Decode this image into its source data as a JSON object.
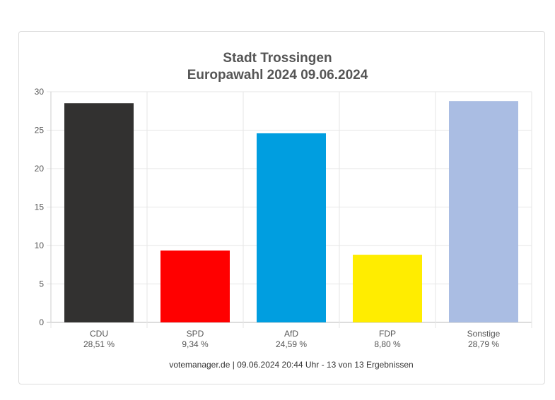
{
  "chart_data": {
    "type": "bar",
    "title_line1": "Stadt Trossingen",
    "title_line2": "Europawahl 2024 09.06.2024",
    "categories": [
      "CDU",
      "SPD",
      "AfD",
      "FDP",
      "Sonstige"
    ],
    "value_labels": [
      "28,51 %",
      "9,34 %",
      "24,59 %",
      "8,80 %",
      "28,79 %"
    ],
    "values": [
      28.51,
      9.34,
      24.59,
      8.8,
      28.79
    ],
    "colors": [
      "#323130",
      "#ff0000",
      "#009ee0",
      "#ffed00",
      "#aabde3"
    ],
    "ylim": [
      0,
      30
    ],
    "yticks": [
      0,
      5,
      10,
      15,
      20,
      25,
      30
    ],
    "grid": true,
    "legend": "none"
  },
  "footer": "votemanager.de | 09.06.2024 20:44 Uhr - 13 von 13 Ergebnissen"
}
